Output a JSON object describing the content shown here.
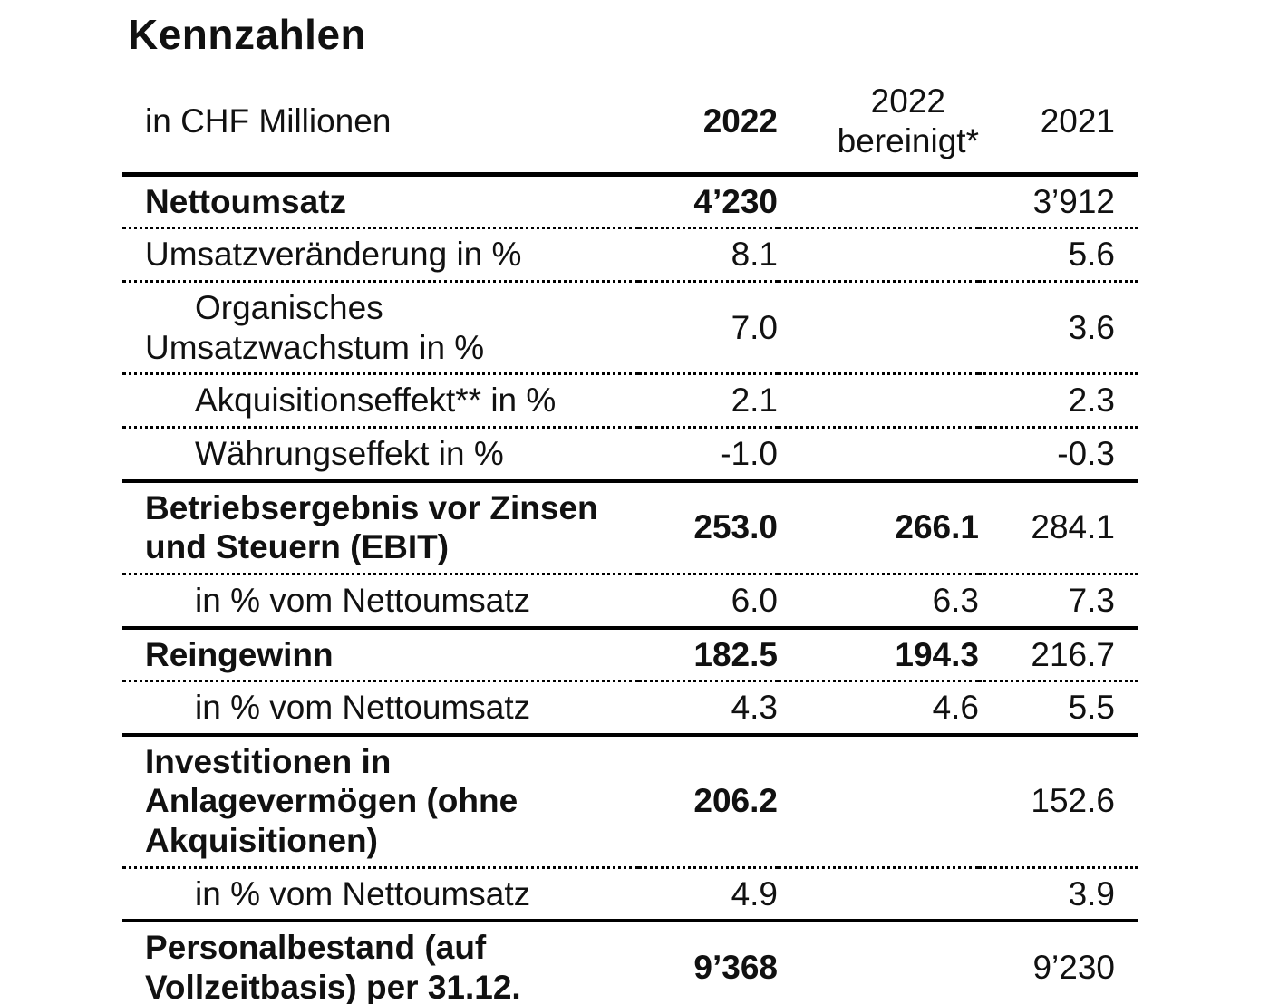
{
  "title": "Kennzahlen",
  "colors": {
    "text": "#111111",
    "line": "#000000",
    "background": "#ffffff"
  },
  "table": {
    "unit_label": "in CHF Millionen",
    "columns": [
      "2022",
      "2022\nbereinigt*",
      "2021"
    ],
    "rows": [
      {
        "label": "Nettoumsatz",
        "values": [
          "4’230",
          "",
          "3’912"
        ]
      },
      {
        "label": "Umsatzveränderung in %",
        "values": [
          "8.1",
          "",
          "5.6"
        ]
      },
      {
        "label": "Organisches\nUmsatzwachstum in %",
        "values": [
          "7.0",
          "",
          "3.6"
        ]
      },
      {
        "label": "Akquisitionseffekt** in %",
        "values": [
          "2.1",
          "",
          "2.3"
        ]
      },
      {
        "label": "Währungseffekt in %",
        "values": [
          "-1.0",
          "",
          "-0.3"
        ]
      },
      {
        "label": "Betriebsergebnis vor Zinsen\nund Steuern (EBIT)",
        "values": [
          "253.0",
          "266.1",
          "284.1"
        ]
      },
      {
        "label": "in % vom Nettoumsatz",
        "values": [
          "6.0",
          "6.3",
          "7.3"
        ]
      },
      {
        "label": "Reingewinn",
        "values": [
          "182.5",
          "194.3",
          "216.7"
        ]
      },
      {
        "label": "in % vom Nettoumsatz",
        "values": [
          "4.3",
          "4.6",
          "5.5"
        ]
      },
      {
        "label": "Investitionen in\nAnlagevermögen (ohne\nAkquisitionen)",
        "values": [
          "206.2",
          "",
          "152.6"
        ]
      },
      {
        "label": "in % vom Nettoumsatz",
        "values": [
          "4.9",
          "",
          "3.9"
        ]
      },
      {
        "label": "Personalbestand (auf\nVollzeitbasis) per 31.12.",
        "values": [
          "9’368",
          "",
          "9’230"
        ]
      }
    ]
  }
}
